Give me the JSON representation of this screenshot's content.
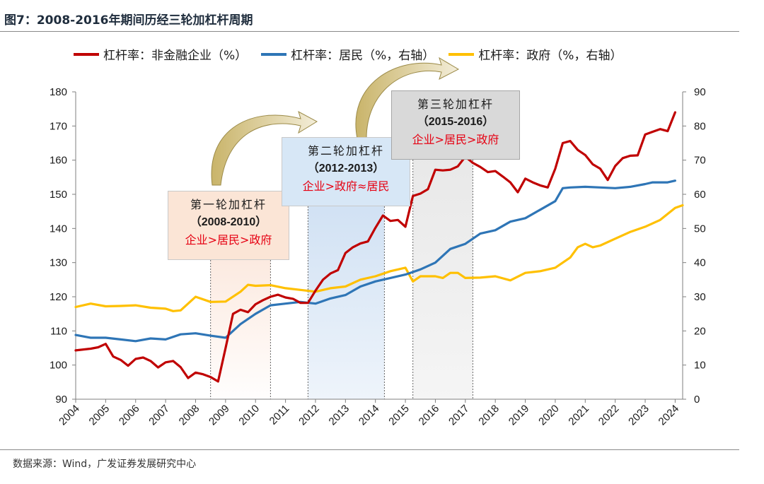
{
  "title": "图7：2008-2016年期间历经三轮加杠杆周期",
  "source": "数据来源：Wind，广发证券发展研究中心",
  "colors": {
    "corporate": "#c00000",
    "household": "#2e75b6",
    "government": "#ffc000"
  },
  "legend": [
    {
      "label": "杠杆率：非金融企业（%）",
      "color": "#c00000"
    },
    {
      "label": "杠杆率：居民（%，右轴）",
      "color": "#2e75b6"
    },
    {
      "label": "杠杆率：政府（%，右轴）",
      "color": "#ffc000"
    }
  ],
  "annotations": [
    {
      "title": "第一轮加杠杆",
      "years": "（2008-2010）",
      "order": "企业>居民>政府",
      "period": [
        2008.5,
        2010.5
      ]
    },
    {
      "title": "第二轮加杠杆",
      "years": "（2012-2013）",
      "order": "企业>政府≈居民",
      "period": [
        2011.75,
        2014.3
      ]
    },
    {
      "title": "第三轮加杠杆",
      "years": "（2015-2016）",
      "order": "企业>居民>政府",
      "period": [
        2015.25,
        2017.25
      ]
    }
  ],
  "chart_data": {
    "type": "line",
    "x_ticks": [
      "2004",
      "2005",
      "2006",
      "2007",
      "2008",
      "2009",
      "2010",
      "2011",
      "2012",
      "2013",
      "2014",
      "2015",
      "2016",
      "2017",
      "2018",
      "2019",
      "2020",
      "2021",
      "2022",
      "2023",
      "2024"
    ],
    "y_left": {
      "range": [
        90,
        180
      ],
      "ticks": [
        90,
        100,
        110,
        120,
        130,
        140,
        150,
        160,
        170,
        180
      ]
    },
    "y_right": {
      "range": [
        0,
        90
      ],
      "ticks": [
        0,
        10,
        20,
        30,
        40,
        50,
        60,
        70,
        80,
        90
      ]
    },
    "series": [
      {
        "name": "杠杆率：非金融企业（%）",
        "axis": "left",
        "values": [
          [
            2004,
            104.3
          ],
          [
            2004.5,
            104.8
          ],
          [
            2004.75,
            105.2
          ],
          [
            2005,
            106.2
          ],
          [
            2005.25,
            102.5
          ],
          [
            2005.5,
            101.5
          ],
          [
            2005.75,
            99.8
          ],
          [
            2006,
            101.8
          ],
          [
            2006.25,
            102.2
          ],
          [
            2006.5,
            101.2
          ],
          [
            2006.75,
            99.3
          ],
          [
            2007,
            100.8
          ],
          [
            2007.25,
            101.2
          ],
          [
            2007.5,
            99.4
          ],
          [
            2007.75,
            96.2
          ],
          [
            2008,
            97.8
          ],
          [
            2008.25,
            97.3
          ],
          [
            2008.5,
            96.5
          ],
          [
            2008.75,
            95.2
          ],
          [
            2009,
            105
          ],
          [
            2009.25,
            115
          ],
          [
            2009.5,
            116.2
          ],
          [
            2009.75,
            115.5
          ],
          [
            2010,
            117.8
          ],
          [
            2010.25,
            119
          ],
          [
            2010.5,
            120
          ],
          [
            2010.75,
            120.6
          ],
          [
            2011,
            119.8
          ],
          [
            2011.25,
            119.4
          ],
          [
            2011.5,
            118.2
          ],
          [
            2011.75,
            118.2
          ],
          [
            2012,
            121.8
          ],
          [
            2012.25,
            125
          ],
          [
            2012.5,
            126.8
          ],
          [
            2012.75,
            127.8
          ],
          [
            2013,
            132.8
          ],
          [
            2013.25,
            134.5
          ],
          [
            2013.5,
            135.6
          ],
          [
            2013.75,
            136.2
          ],
          [
            2014,
            140.2
          ],
          [
            2014.25,
            143.8
          ],
          [
            2014.5,
            142.2
          ],
          [
            2014.75,
            142.5
          ],
          [
            2015,
            140.5
          ],
          [
            2015.25,
            149.5
          ],
          [
            2015.5,
            150.2
          ],
          [
            2015.75,
            151.5
          ],
          [
            2016,
            157.2
          ],
          [
            2016.25,
            157
          ],
          [
            2016.5,
            157.2
          ],
          [
            2016.75,
            158.2
          ],
          [
            2017,
            161
          ],
          [
            2017.25,
            159.2
          ],
          [
            2017.5,
            158
          ],
          [
            2017.75,
            156.5
          ],
          [
            2018,
            156.8
          ],
          [
            2018.25,
            155.2
          ],
          [
            2018.5,
            153.5
          ],
          [
            2018.75,
            150.6
          ],
          [
            2019,
            154.6
          ],
          [
            2019.25,
            153.5
          ],
          [
            2019.5,
            152.6
          ],
          [
            2019.75,
            152
          ],
          [
            2020,
            157.5
          ],
          [
            2020.25,
            165
          ],
          [
            2020.5,
            165.6
          ],
          [
            2020.75,
            163
          ],
          [
            2021,
            161.5
          ],
          [
            2021.25,
            158.8
          ],
          [
            2021.5,
            157.5
          ],
          [
            2021.75,
            154.2
          ],
          [
            2022,
            158.3
          ],
          [
            2022.25,
            160.6
          ],
          [
            2022.5,
            161.3
          ],
          [
            2022.75,
            161.4
          ],
          [
            2023,
            167.5
          ],
          [
            2023.25,
            168.3
          ],
          [
            2023.5,
            169.1
          ],
          [
            2023.75,
            168.5
          ],
          [
            2024,
            174
          ]
        ]
      },
      {
        "name": "杠杆率：居民（%，右轴）",
        "axis": "right",
        "values": [
          [
            2004,
            18.8
          ],
          [
            2004.5,
            18
          ],
          [
            2005,
            18
          ],
          [
            2005.5,
            17.5
          ],
          [
            2006,
            17
          ],
          [
            2006.5,
            17.8
          ],
          [
            2007,
            17.5
          ],
          [
            2007.5,
            19
          ],
          [
            2008,
            19.3
          ],
          [
            2008.5,
            18.6
          ],
          [
            2009,
            18
          ],
          [
            2009.5,
            22
          ],
          [
            2010,
            25
          ],
          [
            2010.5,
            27.5
          ],
          [
            2011,
            28
          ],
          [
            2011.5,
            28.5
          ],
          [
            2012,
            28
          ],
          [
            2012.5,
            29.5
          ],
          [
            2013,
            30.5
          ],
          [
            2013.5,
            33
          ],
          [
            2014,
            34.5
          ],
          [
            2014.5,
            35.5
          ],
          [
            2015,
            36.5
          ],
          [
            2015.5,
            38
          ],
          [
            2016,
            40
          ],
          [
            2016.5,
            44
          ],
          [
            2017,
            45.5
          ],
          [
            2017.5,
            48.5
          ],
          [
            2018,
            49.5
          ],
          [
            2018.5,
            52
          ],
          [
            2019,
            53
          ],
          [
            2019.5,
            55.5
          ],
          [
            2020,
            58
          ],
          [
            2020.25,
            61.8
          ],
          [
            2020.5,
            62
          ],
          [
            2021,
            62.2
          ],
          [
            2021.5,
            62
          ],
          [
            2022,
            61.8
          ],
          [
            2022.5,
            62.2
          ],
          [
            2023,
            63
          ],
          [
            2023.25,
            63.5
          ],
          [
            2023.75,
            63.5
          ],
          [
            2024,
            64
          ]
        ]
      },
      {
        "name": "杠杆率：政府（%，右轴）",
        "axis": "right",
        "values": [
          [
            2004,
            27
          ],
          [
            2004.5,
            28
          ],
          [
            2005,
            27.2
          ],
          [
            2005.5,
            27.3
          ],
          [
            2006,
            27.5
          ],
          [
            2006.5,
            26.8
          ],
          [
            2007,
            26.5
          ],
          [
            2007.25,
            25.8
          ],
          [
            2007.5,
            26
          ],
          [
            2007.75,
            28
          ],
          [
            2008,
            30
          ],
          [
            2008.5,
            28.5
          ],
          [
            2009,
            28.6
          ],
          [
            2009.5,
            31.5
          ],
          [
            2009.75,
            33.5
          ],
          [
            2010,
            33.2
          ],
          [
            2010.5,
            33.4
          ],
          [
            2011,
            32.5
          ],
          [
            2011.5,
            32
          ],
          [
            2012,
            31.5
          ],
          [
            2012.5,
            32.5
          ],
          [
            2013,
            33
          ],
          [
            2013.5,
            35
          ],
          [
            2014,
            36
          ],
          [
            2014.5,
            37.5
          ],
          [
            2015,
            38.5
          ],
          [
            2015.25,
            34.5
          ],
          [
            2015.5,
            36
          ],
          [
            2016,
            36
          ],
          [
            2016.25,
            35.5
          ],
          [
            2016.5,
            37
          ],
          [
            2016.75,
            37
          ],
          [
            2017,
            35.5
          ],
          [
            2017.5,
            35.6
          ],
          [
            2018,
            36
          ],
          [
            2018.5,
            34.8
          ],
          [
            2019,
            37
          ],
          [
            2019.5,
            37.5
          ],
          [
            2020,
            38.5
          ],
          [
            2020.5,
            41.5
          ],
          [
            2020.75,
            44.5
          ],
          [
            2021,
            45.5
          ],
          [
            2021.25,
            44.5
          ],
          [
            2021.5,
            45
          ],
          [
            2022,
            47
          ],
          [
            2022.5,
            49
          ],
          [
            2023,
            50.5
          ],
          [
            2023.5,
            52.5
          ],
          [
            2024,
            56
          ],
          [
            2024.25,
            56.8
          ]
        ]
      }
    ]
  }
}
